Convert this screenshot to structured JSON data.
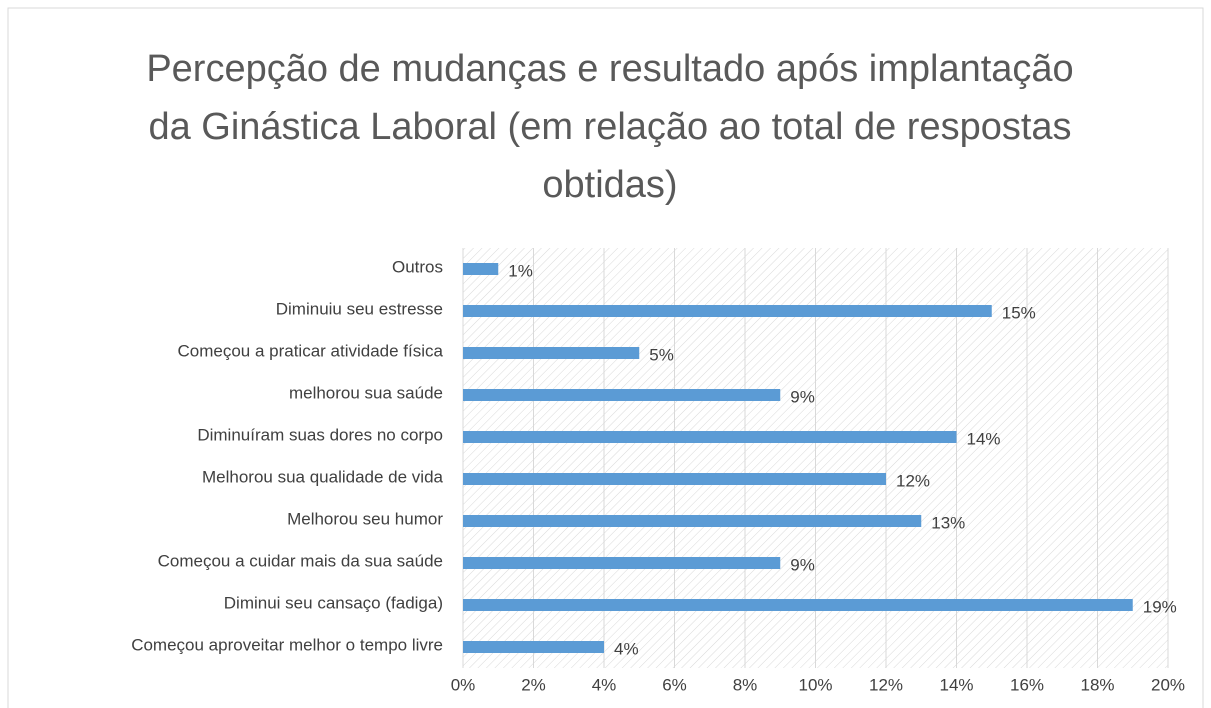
{
  "chart_data": {
    "type": "bar",
    "orientation": "horizontal",
    "title": "Percepção de mudanças e resultado após implantação da Ginástica Laboral (em relação ao total de respostas obtidas)",
    "categories": [
      "Outros",
      "Diminuiu seu estresse",
      "Começou a praticar atividade física",
      "melhorou sua saúde",
      "Diminuíram suas dores no corpo",
      "Melhorou sua qualidade de vida",
      "Melhorou seu humor",
      "Começou a cuidar mais da sua saúde",
      "Diminui seu cansaço (fadiga)",
      "Começou aproveitar melhor o tempo livre"
    ],
    "values": [
      1,
      15,
      5,
      9,
      14,
      12,
      13,
      9,
      19,
      4
    ],
    "value_labels": [
      "1%",
      "15%",
      "5%",
      "9%",
      "14%",
      "12%",
      "13%",
      "9%",
      "19%",
      "4%"
    ],
    "color": "#5b9bd5",
    "xlim": [
      0,
      20
    ],
    "xticks": [
      {
        "value": 0,
        "label": "0%"
      },
      {
        "value": 2,
        "label": "2%"
      },
      {
        "value": 4,
        "label": "4%"
      },
      {
        "value": 6,
        "label": "6%"
      },
      {
        "value": 8,
        "label": "8%"
      },
      {
        "value": 10,
        "label": "10%"
      },
      {
        "value": 12,
        "label": "12%"
      },
      {
        "value": 14,
        "label": "14%"
      },
      {
        "value": 16,
        "label": "16%"
      },
      {
        "value": 18,
        "label": "18%"
      },
      {
        "value": 20,
        "label": "20%"
      }
    ],
    "grid": true
  }
}
